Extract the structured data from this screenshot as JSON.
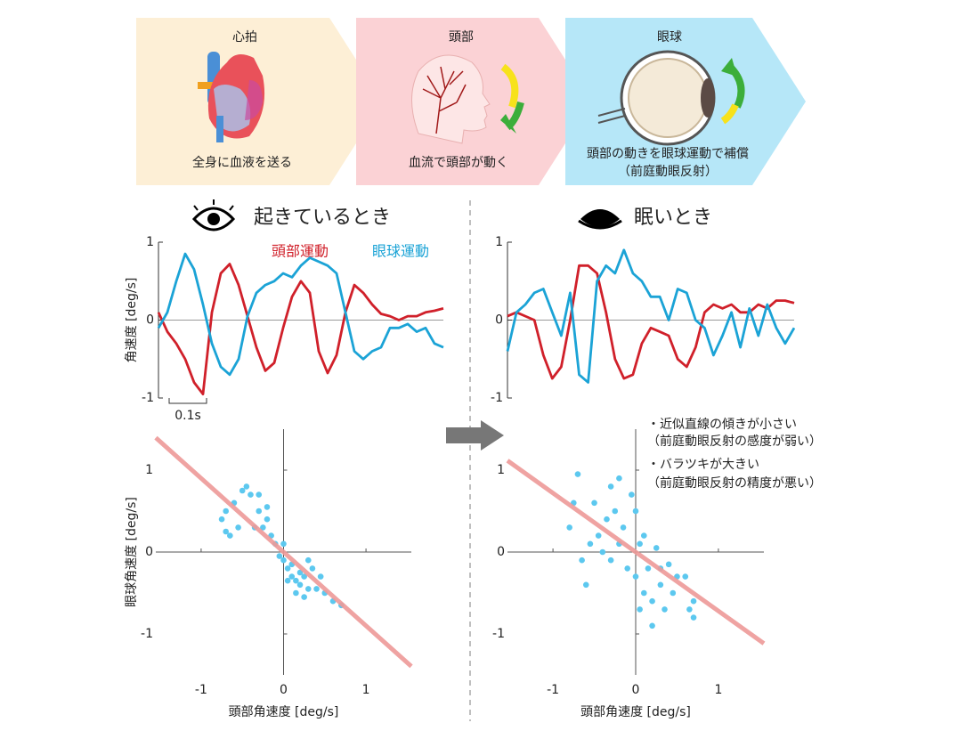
{
  "flow": {
    "steps": [
      {
        "title": "心拍",
        "caption": [
          "全身に血液を送る"
        ]
      },
      {
        "title": "頭部",
        "caption": [
          "血流で頭部が動く"
        ]
      },
      {
        "title": "眼球",
        "caption": [
          "頭部の動きを眼球運動で補償",
          "（前庭動眼反射）"
        ]
      }
    ]
  },
  "chart_data": [
    {
      "type": "line",
      "title": "起きているとき",
      "ylabel": "角速度 [deg/s]",
      "scale_bar": "0.1s",
      "ylim": [
        -1,
        1
      ],
      "yticks": [
        -1,
        0,
        1
      ],
      "series": [
        {
          "name": "頭部運動",
          "color": "#d0202a",
          "values": [
            0.1,
            -0.15,
            -0.3,
            -0.5,
            -0.8,
            -0.95,
            0.1,
            0.6,
            0.72,
            0.45,
            0.05,
            -0.35,
            -0.65,
            -0.55,
            -0.1,
            0.3,
            0.5,
            0.35,
            -0.4,
            -0.68,
            -0.45,
            0.1,
            0.45,
            0.35,
            0.2,
            0.08,
            0.05,
            0.0,
            0.05,
            0.05,
            0.1,
            0.12,
            0.15
          ]
        },
        {
          "name": "眼球運動",
          "color": "#1ba3d6",
          "values": [
            -0.1,
            0.1,
            0.5,
            0.85,
            0.65,
            0.2,
            -0.3,
            -0.6,
            -0.7,
            -0.5,
            0.05,
            0.35,
            0.45,
            0.5,
            0.6,
            0.55,
            0.7,
            0.8,
            0.75,
            0.7,
            0.6,
            0.1,
            -0.4,
            -0.5,
            -0.4,
            -0.35,
            -0.1,
            -0.1,
            -0.05,
            -0.15,
            -0.1,
            -0.3,
            -0.35
          ]
        }
      ]
    },
    {
      "type": "line",
      "title": "眠いとき",
      "ylim": [
        -1,
        1
      ],
      "yticks": [
        -1,
        0,
        1
      ],
      "series": [
        {
          "color": "#d0202a",
          "values": [
            0.05,
            0.1,
            0.05,
            0.0,
            -0.45,
            -0.75,
            -0.6,
            0.0,
            0.7,
            0.7,
            0.6,
            0.1,
            -0.5,
            -0.75,
            -0.7,
            -0.3,
            -0.1,
            -0.15,
            -0.2,
            -0.5,
            -0.6,
            -0.35,
            0.1,
            0.2,
            0.15,
            0.2,
            0.1,
            0.1,
            0.2,
            0.15,
            0.25,
            0.25,
            0.22
          ]
        },
        {
          "color": "#1ba3d6",
          "values": [
            -0.4,
            0.1,
            0.2,
            0.35,
            0.4,
            0.1,
            -0.2,
            0.35,
            -0.7,
            -0.8,
            0.5,
            0.7,
            0.6,
            0.9,
            0.6,
            0.5,
            0.3,
            0.3,
            0.0,
            0.4,
            0.35,
            0.0,
            -0.1,
            -0.45,
            -0.2,
            0.1,
            -0.35,
            0.15,
            -0.2,
            0.2,
            -0.1,
            -0.3,
            -0.1
          ]
        }
      ]
    },
    {
      "type": "scatter",
      "xlabel": "頭部角速度 [deg/s]",
      "ylabel": "眼球角速度 [deg/s]",
      "xlim": [
        -1.55,
        1.55
      ],
      "ylim": [
        -1.5,
        1.5
      ],
      "xticks": [
        -1,
        0,
        1
      ],
      "yticks": [
        -1,
        0,
        1
      ],
      "fit": {
        "slope": -0.9,
        "intercept": 0,
        "color": "#ee9a98"
      },
      "series": [
        {
          "color": "#5cc8ef",
          "x": [
            -0.7,
            -0.75,
            -0.6,
            -0.5,
            -0.45,
            -0.4,
            -0.55,
            -0.65,
            -0.7,
            -0.3,
            -0.2,
            -0.3,
            -0.35,
            -0.15,
            -0.1,
            -0.05,
            0,
            0.05,
            0.1,
            0.15,
            0.2,
            0.25,
            0.3,
            0.2,
            0.1,
            0.35,
            0.45,
            0.5,
            0.6,
            0.7,
            0.05,
            0.15,
            0.0,
            -0.2,
            -0.25,
            0.3,
            0.4,
            0.25
          ],
          "values": [
            0.5,
            0.4,
            0.6,
            0.75,
            0.8,
            0.7,
            0.3,
            0.2,
            0.25,
            0.5,
            0.4,
            0.7,
            0.3,
            0.2,
            0.1,
            -0.05,
            -0.1,
            -0.2,
            -0.3,
            -0.35,
            -0.4,
            -0.3,
            -0.45,
            -0.25,
            -0.15,
            -0.2,
            -0.3,
            -0.5,
            -0.6,
            -0.65,
            -0.35,
            -0.5,
            0.1,
            0.55,
            0.3,
            -0.1,
            -0.45,
            -0.55
          ]
        }
      ]
    },
    {
      "type": "scatter",
      "xlabel": "頭部角速度 [deg/s]",
      "xlim": [
        -1.55,
        1.55
      ],
      "ylim": [
        -1.5,
        1.5
      ],
      "xticks": [
        -1,
        0,
        1
      ],
      "yticks": [
        -1,
        0,
        1
      ],
      "fit": {
        "slope": -0.72,
        "intercept": 0,
        "color": "#ee9a98"
      },
      "annotations": [
        "・近似直線の傾きが小さい",
        "（前庭動眼反射の感度が弱い）",
        "・バラツキが大きい",
        "（前庭動眼反射の精度が悪い）"
      ],
      "series": [
        {
          "color": "#5cc8ef",
          "x": [
            -0.7,
            -0.75,
            -0.8,
            -0.65,
            -0.6,
            -0.5,
            -0.45,
            -0.4,
            -0.3,
            -0.25,
            -0.2,
            -0.3,
            -0.15,
            -0.1,
            0,
            0.05,
            0.0,
            0.1,
            0.05,
            0.15,
            0.2,
            0.25,
            0.3,
            0.35,
            0.3,
            0.45,
            0.5,
            0.6,
            0.65,
            0.7,
            0.7,
            -0.55,
            -0.2,
            0.1,
            0.2,
            0.4,
            -0.05,
            -0.35
          ],
          "values": [
            0.95,
            0.6,
            0.3,
            -0.1,
            -0.4,
            0.6,
            0.2,
            0.0,
            0.8,
            0.5,
            0.9,
            -0.1,
            0.3,
            -0.2,
            0.5,
            0.1,
            -0.3,
            -0.5,
            -0.7,
            -0.2,
            -0.6,
            0.05,
            -0.4,
            -0.7,
            -0.2,
            -0.5,
            -0.3,
            -0.3,
            -0.7,
            -0.6,
            -0.8,
            0.1,
            0.1,
            0.2,
            -0.9,
            -0.15,
            0.7,
            0.4
          ]
        }
      ]
    }
  ]
}
